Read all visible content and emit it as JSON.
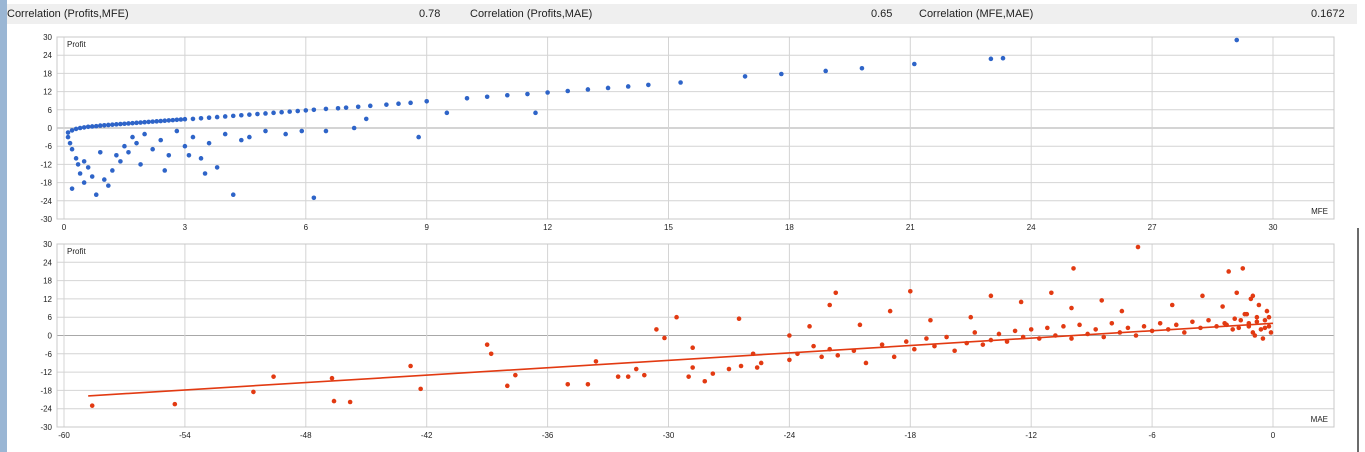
{
  "header": {
    "c1_label": "Correlation (Profits,MFE)",
    "c1_value": "0.78",
    "c2_label": "Correlation (Profits,MAE)",
    "c2_value": "0.65",
    "c3_label": "Correlation (MFE,MAE)",
    "c3_value": "0.1672"
  },
  "colors": {
    "mfe_points": "#2e64c8",
    "mae_points": "#e23a12",
    "grid": "#d4d4d4"
  },
  "chart_data": [
    {
      "type": "scatter",
      "ylabel": "Profit",
      "xlabel": "MFE",
      "xlim": [
        0,
        30
      ],
      "ylim": [
        -30,
        30
      ],
      "x_ticks": [
        0,
        3,
        6,
        9,
        12,
        15,
        18,
        21,
        24,
        27,
        30
      ],
      "y_ticks": [
        30,
        24,
        18,
        12,
        6,
        0,
        -6,
        -12,
        -18,
        -24,
        -30
      ],
      "grid": true,
      "series": [
        {
          "points": [
            [
              0.1,
              -1.5
            ],
            [
              0.2,
              -0.8
            ],
            [
              0.3,
              -0.3
            ],
            [
              0.4,
              0
            ],
            [
              0.5,
              0.2
            ],
            [
              0.6,
              0.4
            ],
            [
              0.7,
              0.5
            ],
            [
              0.8,
              0.6
            ],
            [
              0.9,
              0.8
            ],
            [
              1.0,
              0.9
            ],
            [
              1.1,
              1.0
            ],
            [
              1.2,
              1.1
            ],
            [
              1.3,
              1.2
            ],
            [
              1.4,
              1.3
            ],
            [
              1.5,
              1.4
            ],
            [
              1.6,
              1.5
            ],
            [
              1.7,
              1.6
            ],
            [
              1.8,
              1.7
            ],
            [
              1.9,
              1.8
            ],
            [
              2.0,
              1.9
            ],
            [
              2.1,
              2.0
            ],
            [
              2.2,
              2.1
            ],
            [
              2.3,
              2.2
            ],
            [
              2.4,
              2.3
            ],
            [
              2.5,
              2.4
            ],
            [
              2.6,
              2.5
            ],
            [
              2.7,
              2.6
            ],
            [
              2.8,
              2.7
            ],
            [
              2.9,
              2.8
            ],
            [
              3.0,
              2.9
            ],
            [
              3.2,
              3.0
            ],
            [
              3.4,
              3.2
            ],
            [
              3.6,
              3.4
            ],
            [
              3.8,
              3.6
            ],
            [
              4.0,
              3.8
            ],
            [
              4.2,
              4.0
            ],
            [
              4.4,
              4.2
            ],
            [
              4.6,
              4.4
            ],
            [
              4.8,
              4.6
            ],
            [
              5.0,
              4.8
            ],
            [
              5.2,
              5.0
            ],
            [
              5.4,
              5.2
            ],
            [
              5.6,
              5.4
            ],
            [
              5.8,
              5.6
            ],
            [
              6.0,
              5.8
            ],
            [
              6.2,
              6.0
            ],
            [
              6.5,
              6.3
            ],
            [
              6.8,
              6.5
            ],
            [
              7.0,
              6.7
            ],
            [
              7.3,
              7.0
            ],
            [
              7.6,
              7.3
            ],
            [
              8.0,
              7.7
            ],
            [
              8.3,
              8.0
            ],
            [
              8.6,
              8.3
            ],
            [
              9.0,
              8.8
            ],
            [
              10.0,
              9.8
            ],
            [
              10.5,
              10.3
            ],
            [
              11.0,
              10.8
            ],
            [
              11.5,
              11.2
            ],
            [
              12.0,
              11.7
            ],
            [
              12.5,
              12.2
            ],
            [
              13.0,
              12.7
            ],
            [
              13.5,
              13.2
            ],
            [
              14.0,
              13.7
            ],
            [
              14.5,
              14.2
            ],
            [
              15.3,
              15.0
            ],
            [
              16.9,
              17.0
            ],
            [
              17.8,
              17.8
            ],
            [
              18.9,
              18.8
            ],
            [
              19.8,
              19.7
            ],
            [
              21.1,
              21.1
            ],
            [
              23.0,
              22.8
            ],
            [
              23.3,
              23.0
            ],
            [
              29.1,
              29.0
            ],
            [
              0.1,
              -3
            ],
            [
              0.15,
              -5
            ],
            [
              0.2,
              -7
            ],
            [
              0.3,
              -10
            ],
            [
              0.35,
              -12
            ],
            [
              0.4,
              -15
            ],
            [
              0.5,
              -18
            ],
            [
              0.6,
              -13
            ],
            [
              0.7,
              -16
            ],
            [
              0.8,
              -22
            ],
            [
              1.0,
              -17
            ],
            [
              1.1,
              -19
            ],
            [
              1.2,
              -14
            ],
            [
              1.3,
              -9
            ],
            [
              1.4,
              -11
            ],
            [
              1.5,
              -6
            ],
            [
              1.6,
              -8
            ],
            [
              1.7,
              -3
            ],
            [
              1.8,
              -5
            ],
            [
              2.0,
              -2
            ],
            [
              2.2,
              -7
            ],
            [
              2.4,
              -4
            ],
            [
              2.6,
              -9
            ],
            [
              2.8,
              -1
            ],
            [
              3.0,
              -6
            ],
            [
              3.2,
              -3
            ],
            [
              3.4,
              -10
            ],
            [
              3.6,
              -5
            ],
            [
              3.8,
              -13
            ],
            [
              4.0,
              -2
            ],
            [
              4.2,
              -22
            ],
            [
              4.4,
              -4
            ],
            [
              4.6,
              -3
            ],
            [
              5.0,
              -1
            ],
            [
              5.5,
              -2
            ],
            [
              5.9,
              -1
            ],
            [
              6.2,
              -23
            ],
            [
              6.5,
              -1
            ],
            [
              7.2,
              0
            ],
            [
              7.5,
              3
            ],
            [
              8.8,
              -3
            ],
            [
              9.5,
              5
            ],
            [
              11.7,
              5
            ],
            [
              0.2,
              -20
            ],
            [
              0.5,
              -11
            ],
            [
              0.9,
              -8
            ],
            [
              1.9,
              -12
            ],
            [
              2.5,
              -14
            ],
            [
              3.1,
              -9
            ],
            [
              3.5,
              -15
            ]
          ]
        }
      ]
    },
    {
      "type": "scatter",
      "ylabel": "Profit",
      "xlabel": "MAE",
      "xlim": [
        -60,
        0
      ],
      "ylim": [
        -30,
        30
      ],
      "x_ticks": [
        -60,
        -54,
        -48,
        -42,
        -36,
        -30,
        -24,
        -18,
        -12,
        -6,
        0
      ],
      "y_ticks": [
        30,
        24,
        18,
        12,
        6,
        0,
        -6,
        -12,
        -18,
        -24,
        -30
      ],
      "grid": true,
      "trendline": {
        "from": [
          -58.8,
          -19.8
        ],
        "to": [
          0,
          4.0
        ]
      },
      "series": [
        {
          "points": [
            [
              -58.6,
              -23
            ],
            [
              -54.5,
              -22.5
            ],
            [
              -50.6,
              -18.5
            ],
            [
              -49.6,
              -13.5
            ],
            [
              -46.7,
              -14
            ],
            [
              -46.6,
              -21.5
            ],
            [
              -45.8,
              -21.8
            ],
            [
              -42.8,
              -10
            ],
            [
              -42.3,
              -17.5
            ],
            [
              -39,
              -3
            ],
            [
              -38.8,
              -6
            ],
            [
              -38,
              -16.5
            ],
            [
              -37.6,
              -13
            ],
            [
              -35,
              -16
            ],
            [
              -34,
              -16
            ],
            [
              -33.6,
              -8.5
            ],
            [
              -32,
              -13.5
            ],
            [
              -31.6,
              -11
            ],
            [
              -31.2,
              -13
            ],
            [
              -30.6,
              2
            ],
            [
              -29.6,
              6
            ],
            [
              -29,
              -13.5
            ],
            [
              -28.8,
              -4
            ],
            [
              -28.2,
              -15
            ],
            [
              -27.8,
              -12.5
            ],
            [
              -27,
              -11
            ],
            [
              -26.4,
              -10
            ],
            [
              -25.8,
              -6
            ],
            [
              -25.6,
              -10.5
            ],
            [
              -25.4,
              -9
            ],
            [
              -24,
              -8
            ],
            [
              -23.6,
              -6
            ],
            [
              -22.8,
              -3.5
            ],
            [
              -22.4,
              -7
            ],
            [
              -22,
              -4.5
            ],
            [
              -21.6,
              -6.5
            ],
            [
              -20.8,
              -5
            ],
            [
              -20.2,
              -9
            ],
            [
              -19.4,
              -3
            ],
            [
              -18.8,
              -7
            ],
            [
              -18.2,
              -2
            ],
            [
              -17.8,
              -4.5
            ],
            [
              -17.2,
              -1
            ],
            [
              -16.8,
              -3.5
            ],
            [
              -16.2,
              -0.5
            ],
            [
              -15.8,
              -5
            ],
            [
              -15.2,
              -2.5
            ],
            [
              -14.8,
              1
            ],
            [
              -14.4,
              -3
            ],
            [
              -14,
              -1.5
            ],
            [
              -13.6,
              0.5
            ],
            [
              -13.2,
              -2
            ],
            [
              -12.8,
              1.5
            ],
            [
              -12.4,
              -0.5
            ],
            [
              -12,
              2
            ],
            [
              -11.6,
              -1
            ],
            [
              -11.2,
              2.5
            ],
            [
              -10.8,
              0
            ],
            [
              -10.4,
              3
            ],
            [
              -10,
              -1
            ],
            [
              -9.6,
              3.5
            ],
            [
              -9.2,
              0.5
            ],
            [
              -8.8,
              2
            ],
            [
              -8.4,
              -0.5
            ],
            [
              -8,
              4
            ],
            [
              -7.6,
              1
            ],
            [
              -7.2,
              2.5
            ],
            [
              -6.8,
              0
            ],
            [
              -6.4,
              3
            ],
            [
              -6,
              1.5
            ],
            [
              -5.6,
              4
            ],
            [
              -5.2,
              2
            ],
            [
              -4.8,
              3.5
            ],
            [
              -4.4,
              1
            ],
            [
              -4,
              4.5
            ],
            [
              -3.6,
              2.5
            ],
            [
              -3.2,
              5
            ],
            [
              -2.8,
              3
            ],
            [
              -2.4,
              4
            ],
            [
              -2,
              2
            ],
            [
              -1.6,
              5
            ],
            [
              -1.2,
              3
            ],
            [
              -0.8,
              4.5
            ],
            [
              -0.4,
              2.5
            ],
            [
              -0.2,
              6
            ],
            [
              -0.1,
              1
            ],
            [
              -0.3,
              8
            ],
            [
              -0.5,
              -1
            ],
            [
              -0.7,
              10
            ],
            [
              -0.9,
              0
            ],
            [
              -1.1,
              12
            ],
            [
              -1.3,
              7
            ],
            [
              -1.8,
              14
            ],
            [
              -2.2,
              21
            ],
            [
              -1.5,
              22
            ],
            [
              -6.7,
              29
            ],
            [
              -9.9,
              22
            ],
            [
              -21.7,
              14
            ],
            [
              -18,
              14.5
            ],
            [
              -22,
              10
            ],
            [
              -14,
              13
            ],
            [
              -12.5,
              11
            ],
            [
              -11,
              14
            ],
            [
              -10,
              9
            ],
            [
              -8.5,
              11.5
            ],
            [
              -7.5,
              8
            ],
            [
              -5,
              10
            ],
            [
              -3.5,
              13
            ],
            [
              -2.5,
              9.5
            ],
            [
              -1,
              13
            ],
            [
              -15,
              6
            ],
            [
              -17,
              5
            ],
            [
              -19,
              8
            ],
            [
              -20.5,
              3.5
            ],
            [
              -23,
              3
            ],
            [
              -24,
              0
            ],
            [
              -26.5,
              5.5
            ],
            [
              -30.2,
              -0.8
            ],
            [
              -28.8,
              -10.5
            ],
            [
              -32.5,
              -13.5
            ],
            [
              -0.2,
              3
            ],
            [
              -0.4,
              5
            ],
            [
              -0.6,
              2
            ],
            [
              -0.8,
              6
            ],
            [
              -1,
              1
            ],
            [
              -1.2,
              4
            ],
            [
              -1.4,
              7
            ],
            [
              -1.7,
              2.5
            ],
            [
              -1.9,
              5.5
            ],
            [
              -2.3,
              3.5
            ]
          ]
        }
      ]
    }
  ]
}
